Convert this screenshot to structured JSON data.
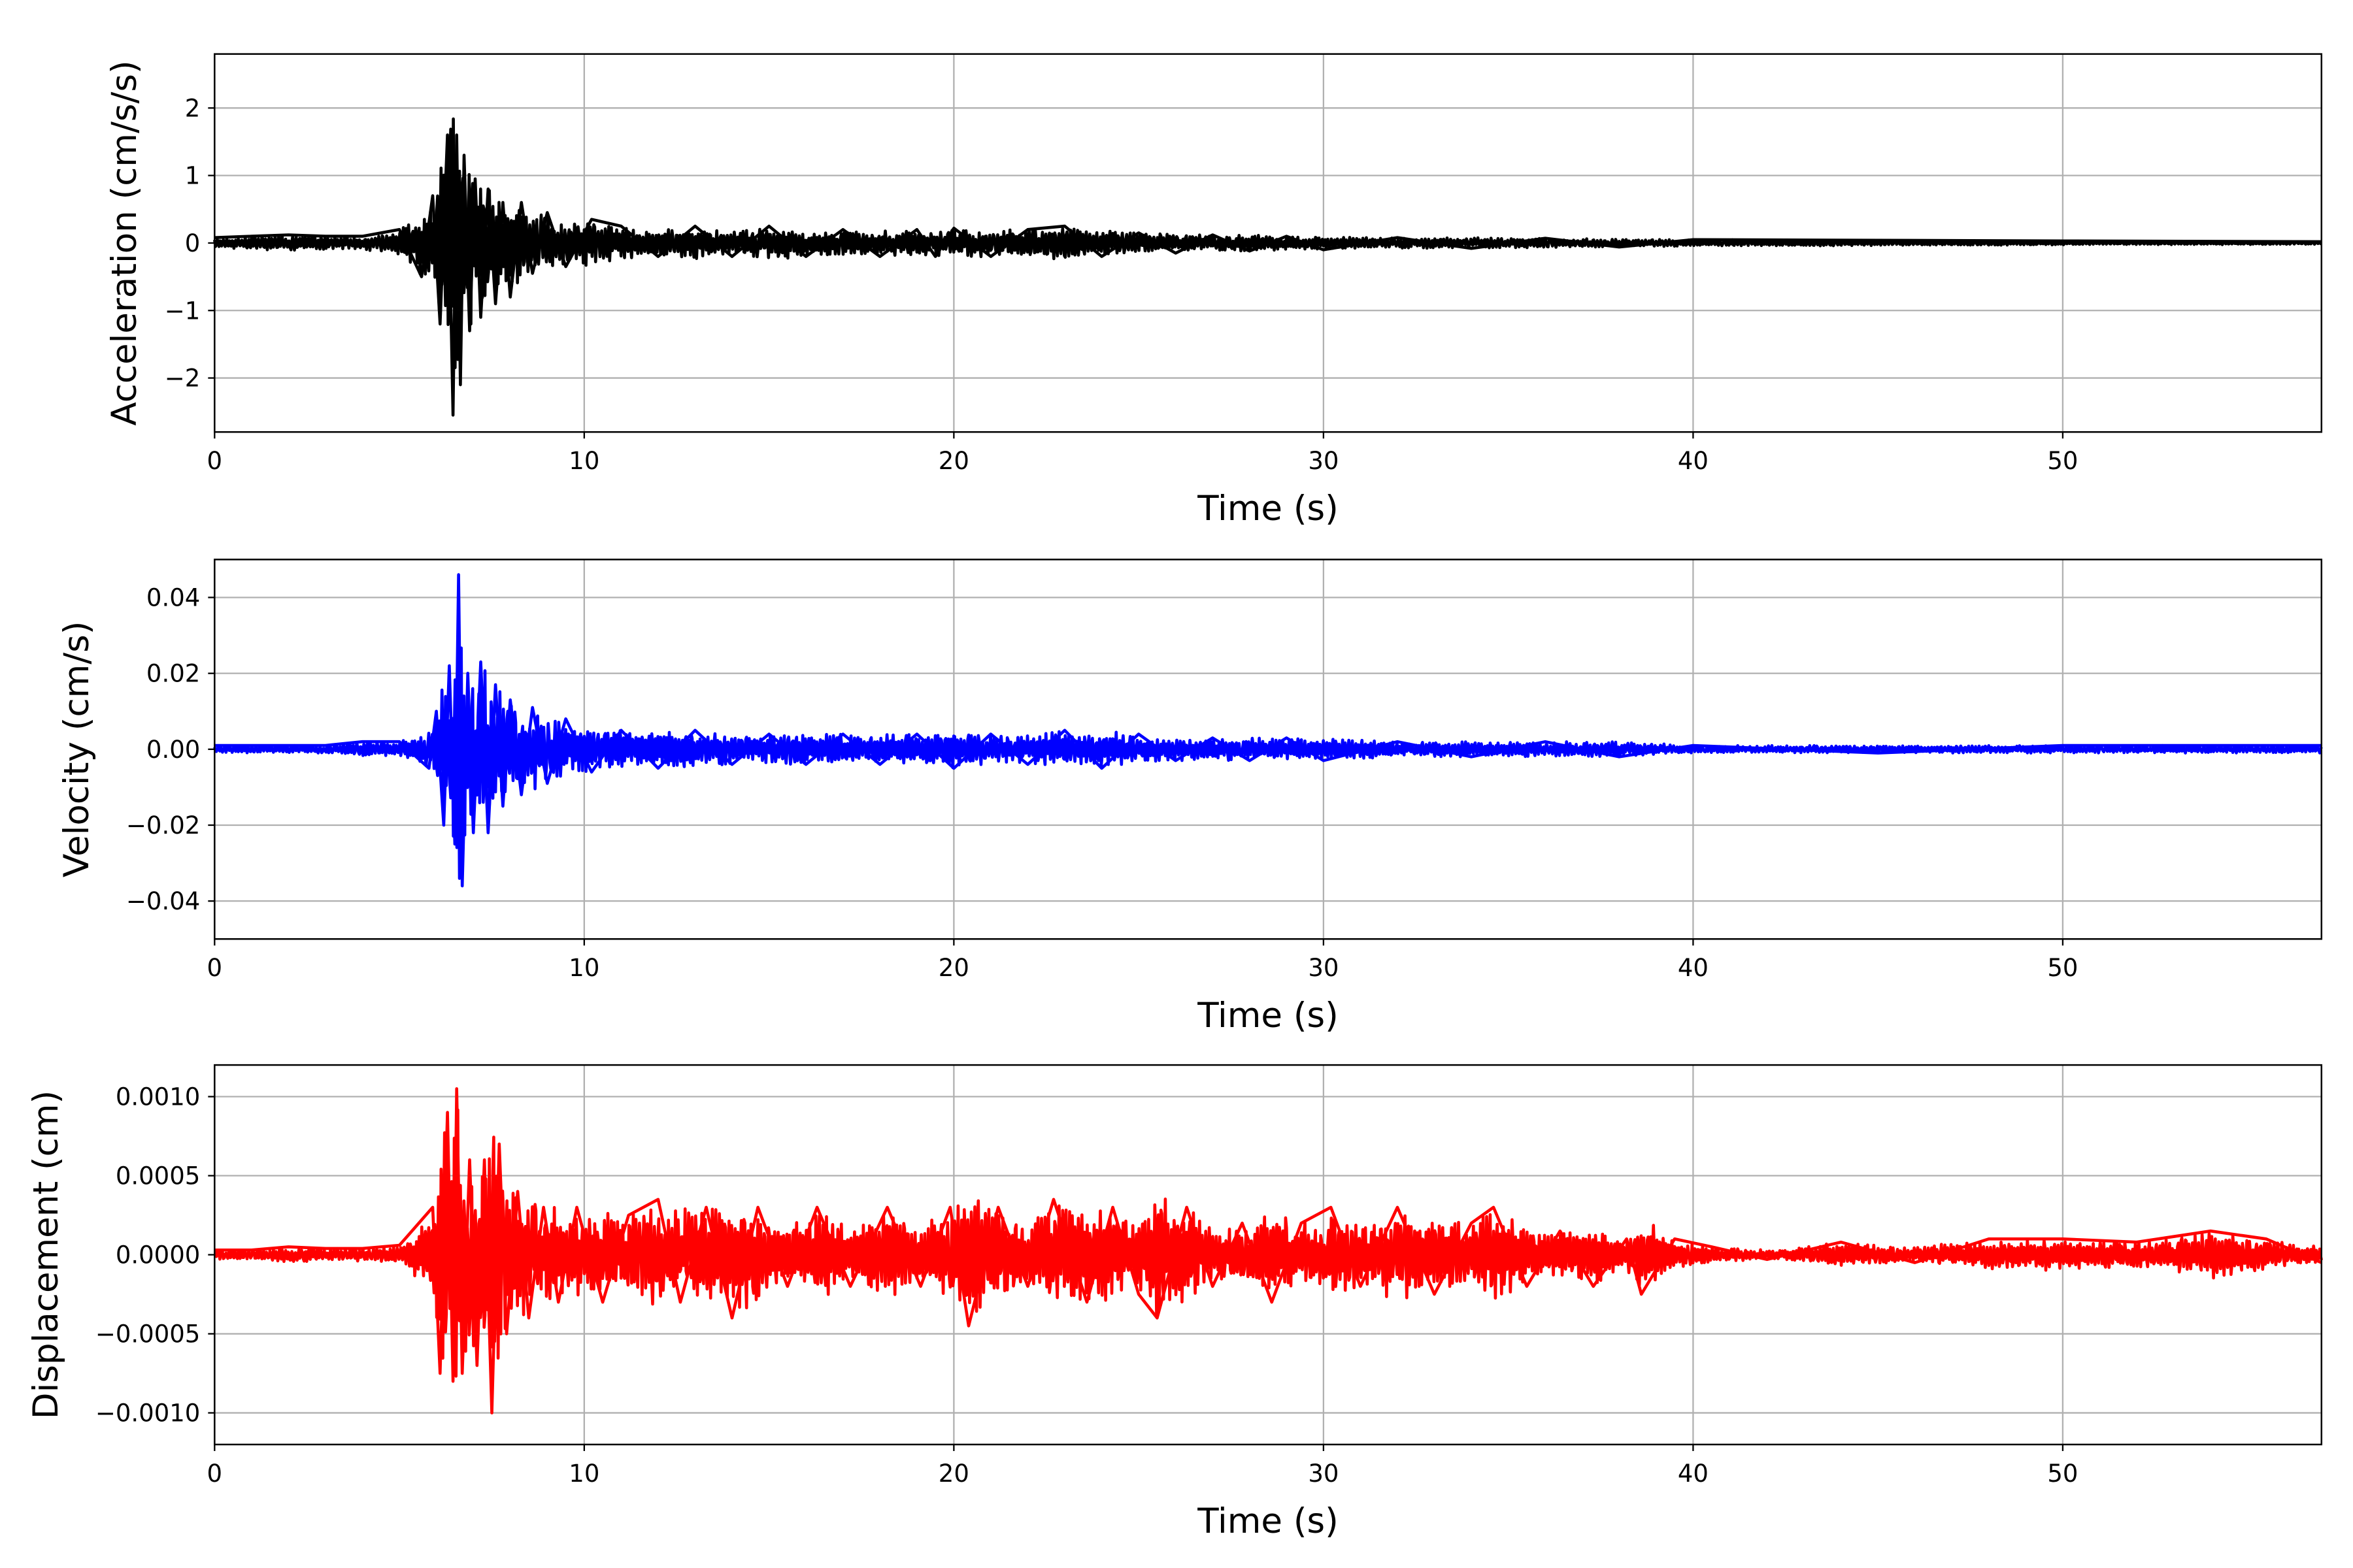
{
  "chart_data": [
    {
      "type": "line",
      "title": "",
      "xlabel": "Time (s)",
      "ylabel": "Acceleration (cm/s/s)",
      "xlim": [
        0,
        57
      ],
      "ylim": [
        -2.8,
        2.8
      ],
      "xticks": [
        0,
        10,
        20,
        30,
        40,
        50
      ],
      "xtick_labels": [
        "0",
        "10",
        "20",
        "30",
        "40",
        "50"
      ],
      "yticks": [
        -2,
        -1,
        0,
        1,
        2
      ],
      "ytick_labels": [
        "−2",
        "−1",
        "0",
        "1",
        "2"
      ],
      "grid": true,
      "color": "#000000",
      "series": [
        {
          "x": [
            0,
            1,
            2,
            3,
            4,
            5,
            5.6,
            5.9,
            6.1,
            6.3,
            6.45,
            6.55,
            6.65,
            6.75,
            6.9,
            7.05,
            7.2,
            7.4,
            7.6,
            7.8,
            8.0,
            8.3,
            8.6,
            9.0,
            9.5,
            10.2,
            11,
            12,
            13,
            14,
            15,
            16,
            17,
            18,
            19,
            19.5,
            20,
            21,
            22,
            23,
            24,
            25,
            26,
            27,
            28,
            29,
            30,
            32,
            34,
            36,
            38,
            40,
            45,
            50,
            57
          ],
          "y": [
            0.08,
            0.1,
            0.12,
            0.1,
            0.1,
            0.2,
            -0.5,
            0.7,
            -1.2,
            1.6,
            -2.55,
            1.6,
            -2.1,
            1.3,
            -1.3,
            0.95,
            -1.1,
            0.8,
            -0.9,
            0.6,
            -0.8,
            0.6,
            -0.45,
            0.45,
            -0.35,
            0.35,
            0.25,
            -0.2,
            0.25,
            -0.2,
            0.25,
            -0.2,
            0.2,
            -0.2,
            0.2,
            -0.2,
            0.22,
            -0.2,
            0.2,
            0.25,
            -0.2,
            0.15,
            -0.15,
            0.12,
            -0.12,
            0.1,
            -0.1,
            0.08,
            -0.08,
            0.07,
            -0.06,
            0.05,
            0.04,
            0.03,
            0.02
          ]
        }
      ]
    },
    {
      "type": "line",
      "title": "",
      "xlabel": "Time (s)",
      "ylabel": "Velocity (cm/s)",
      "xlim": [
        0,
        57
      ],
      "ylim": [
        -0.05,
        0.05
      ],
      "xticks": [
        0,
        10,
        20,
        30,
        40,
        50
      ],
      "xtick_labels": [
        "0",
        "10",
        "20",
        "30",
        "40",
        "50"
      ],
      "yticks": [
        -0.04,
        -0.02,
        0.0,
        0.02,
        0.04
      ],
      "ytick_labels": [
        "−0.04",
        "−0.02",
        "0.00",
        "0.02",
        "0.04"
      ],
      "grid": true,
      "color": "#0000ff",
      "series": [
        {
          "x": [
            0,
            1,
            2,
            3,
            4,
            5,
            5.8,
            6.0,
            6.2,
            6.35,
            6.5,
            6.6,
            6.7,
            6.85,
            7.0,
            7.2,
            7.4,
            7.6,
            7.8,
            8.0,
            8.3,
            8.6,
            9.0,
            9.5,
            10.2,
            11,
            12,
            13,
            14,
            15,
            16,
            17,
            18,
            19,
            20,
            21,
            22,
            23,
            24,
            25,
            26,
            27,
            28,
            29,
            30,
            32,
            34,
            36,
            38,
            40,
            45,
            50,
            57
          ],
          "y": [
            0.001,
            0.001,
            0.001,
            0.001,
            0.002,
            0.002,
            -0.005,
            0.01,
            -0.02,
            0.022,
            -0.025,
            0.046,
            -0.036,
            0.02,
            -0.022,
            0.023,
            -0.022,
            0.017,
            -0.015,
            0.013,
            -0.012,
            0.011,
            -0.009,
            0.008,
            -0.006,
            0.005,
            -0.005,
            0.005,
            -0.004,
            0.004,
            -0.004,
            0.004,
            -0.004,
            0.004,
            -0.005,
            0.004,
            -0.004,
            0.005,
            -0.005,
            0.004,
            -0.003,
            0.003,
            -0.003,
            0.003,
            -0.003,
            0.002,
            -0.002,
            0.002,
            -0.002,
            0.001,
            -0.001,
            0.001,
            0.001
          ]
        }
      ]
    },
    {
      "type": "line",
      "title": "",
      "xlabel": "Time (s)",
      "ylabel": "Displacement (cm)",
      "xlim": [
        0,
        57
      ],
      "ylim": [
        -0.0012,
        0.0012
      ],
      "xticks": [
        0,
        10,
        20,
        30,
        40,
        50
      ],
      "xtick_labels": [
        "0",
        "10",
        "20",
        "30",
        "40",
        "50"
      ],
      "yticks": [
        -0.001,
        -0.0005,
        0.0,
        0.0005,
        0.001
      ],
      "ytick_labels": [
        "−0.0010",
        "−0.0005",
        "0.0000",
        "0.0005",
        "0.0010"
      ],
      "grid": true,
      "color": "#ff0000",
      "series": [
        {
          "x": [
            0,
            1,
            2,
            3,
            4,
            5,
            5.9,
            6.1,
            6.3,
            6.45,
            6.55,
            6.7,
            6.9,
            7.1,
            7.3,
            7.5,
            7.7,
            7.9,
            8.2,
            8.5,
            8.9,
            9.3,
            9.8,
            10.5,
            11.2,
            12,
            12.6,
            13.3,
            14,
            14.7,
            15.5,
            16.3,
            17.2,
            18.2,
            19.1,
            19.9,
            20.4,
            21.2,
            22,
            22.7,
            23.6,
            24.3,
            25,
            25.5,
            26.3,
            27,
            27.8,
            28.6,
            29.4,
            30.2,
            31,
            32,
            33,
            34,
            34.6,
            35.5,
            36.4,
            37.3,
            38.2,
            38.6,
            39.5,
            40.5,
            42,
            44,
            46,
            48,
            50,
            52,
            54,
            55.5,
            57
          ],
          "y": [
            3e-05,
            3e-05,
            5e-05,
            4e-05,
            4e-05,
            6e-05,
            0.0003,
            -0.00075,
            0.0009,
            -0.0008,
            0.00105,
            -0.00075,
            0.0006,
            -0.0007,
            0.0006,
            -0.001,
            0.0007,
            -0.0005,
            0.0004,
            -0.0004,
            0.0003,
            -0.0003,
            0.0003,
            -0.0003,
            0.00025,
            0.00035,
            -0.0003,
            0.0003,
            -0.0004,
            0.0003,
            -0.0002,
            0.0003,
            -0.0002,
            0.0003,
            -0.0002,
            0.0003,
            -0.00045,
            0.0003,
            -0.0002,
            0.00035,
            -0.0003,
            0.0003,
            -0.00025,
            -0.0004,
            0.0003,
            -0.0002,
            0.0002,
            -0.0003,
            0.0002,
            0.0003,
            -0.0002,
            0.0003,
            -0.00025,
            0.0002,
            0.0003,
            -0.0002,
            0.00015,
            -0.0002,
            0.0001,
            -0.00025,
            0.0001,
            5e-05,
            -3e-05,
            8e-05,
            -5e-05,
            0.0001,
            0.0001,
            8e-05,
            0.00015,
            0.0001,
            -5e-05
          ]
        }
      ]
    }
  ]
}
